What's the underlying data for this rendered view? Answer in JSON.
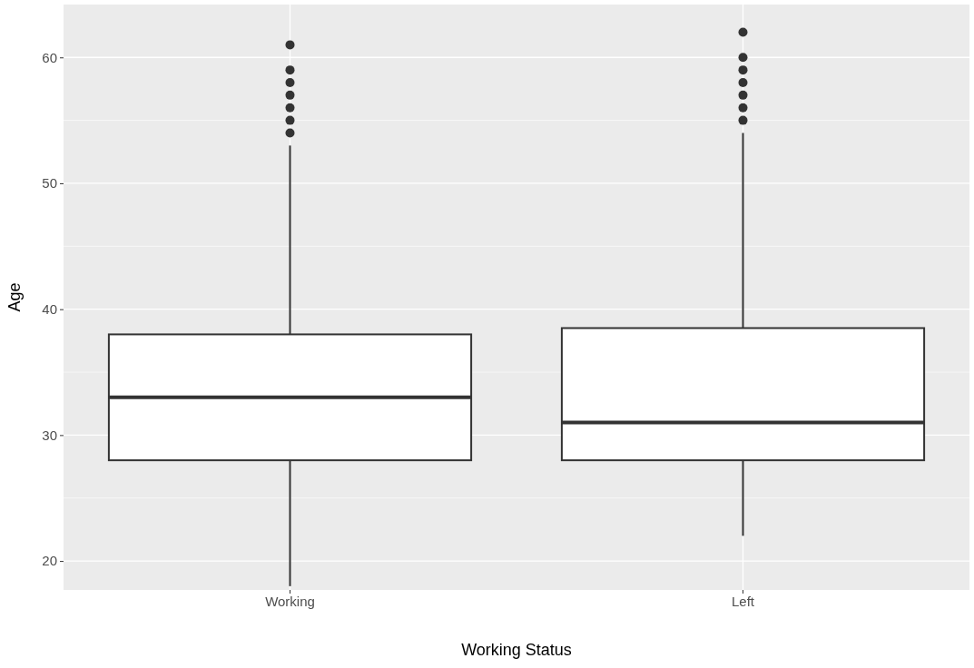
{
  "chart_data": {
    "type": "box",
    "xlabel": "Working Status",
    "ylabel": "Age",
    "categories": [
      "Working",
      "Left"
    ],
    "boxes": [
      {
        "low": 18,
        "q1": 28,
        "median": 33,
        "q3": 38,
        "high": 53,
        "outliers": [
          54,
          55,
          56,
          57,
          58,
          59,
          61
        ]
      },
      {
        "low": 22,
        "q1": 28,
        "median": 31,
        "q3": 38.5,
        "high": 54,
        "outliers": [
          55,
          56,
          57,
          58,
          59,
          60,
          62
        ]
      }
    ],
    "ylim": [
      17.7,
      64.2
    ],
    "yticks": [
      20,
      30,
      40,
      50,
      60
    ],
    "grid": true
  }
}
